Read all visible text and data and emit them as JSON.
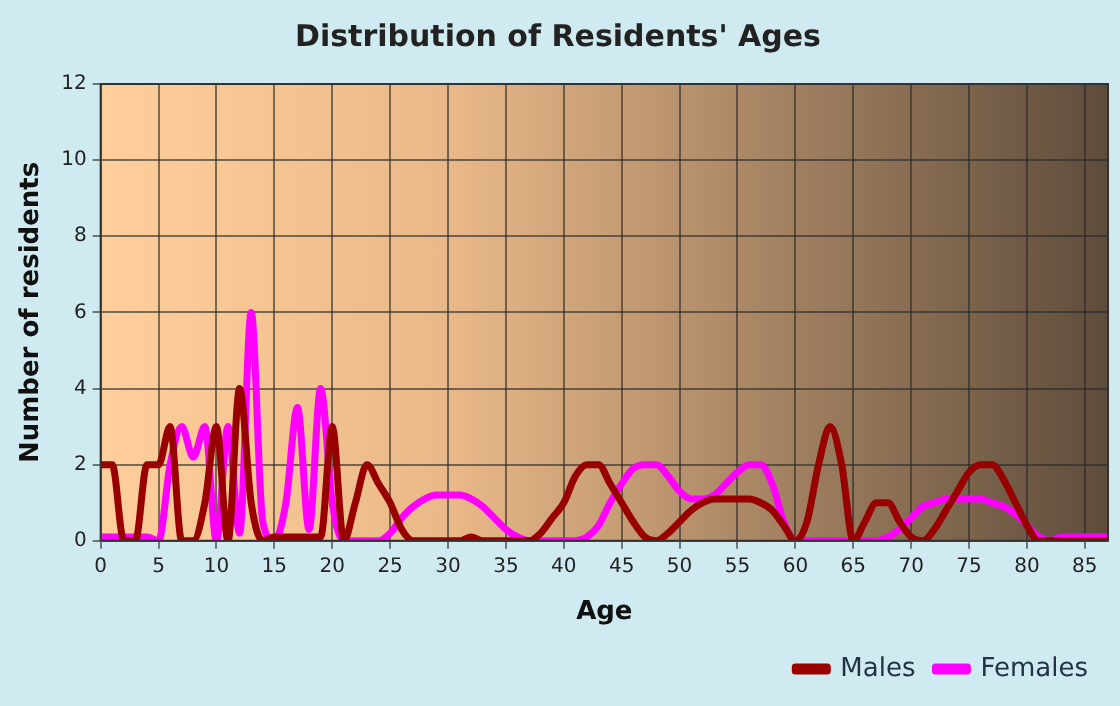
{
  "chart_data": {
    "type": "line",
    "title": "Distribution of Residents' Ages",
    "xlabel": "Age",
    "ylabel": "Number of residents",
    "x": [
      0,
      1,
      2,
      3,
      4,
      5,
      6,
      7,
      8,
      9,
      10,
      11,
      12,
      13,
      14,
      15,
      16,
      17,
      18,
      19,
      20,
      21,
      22,
      23,
      24,
      25,
      26,
      27,
      28,
      29,
      30,
      31,
      32,
      33,
      34,
      35,
      36,
      37,
      38,
      39,
      40,
      41,
      42,
      43,
      44,
      45,
      46,
      47,
      48,
      49,
      50,
      51,
      52,
      53,
      54,
      55,
      56,
      57,
      58,
      59,
      60,
      61,
      62,
      63,
      64,
      65,
      66,
      67,
      68,
      69,
      70,
      71,
      72,
      73,
      74,
      75,
      76,
      77,
      78,
      79,
      80,
      81,
      82,
      83,
      84,
      85,
      86,
      87
    ],
    "series": [
      {
        "name": "Males",
        "color": "#990000",
        "values": [
          2,
          2,
          0,
          0,
          2,
          2,
          3,
          0,
          0,
          1,
          3,
          0,
          4,
          1,
          0,
          0.1,
          0.1,
          0.1,
          0.1,
          0.1,
          3,
          0,
          1,
          2,
          1.5,
          1,
          0.3,
          0,
          0,
          0,
          0,
          0,
          0.1,
          0,
          0,
          0,
          0,
          0,
          0.2,
          0.6,
          1,
          1.7,
          2,
          2,
          1.5,
          1,
          0.5,
          0.1,
          0,
          0.2,
          0.5,
          0.8,
          1,
          1.1,
          1.1,
          1.1,
          1.1,
          1,
          0.8,
          0.4,
          0,
          0.5,
          2,
          3,
          2,
          0,
          0.5,
          1,
          1,
          0.5,
          0.1,
          0,
          0.3,
          0.8,
          1.3,
          1.8,
          2,
          2,
          1.6,
          1,
          0.4,
          0,
          0,
          0,
          0,
          0,
          0,
          0
        ]
      },
      {
        "name": "Females",
        "color": "#ff00ff",
        "values": [
          0.1,
          0.1,
          0.1,
          0.1,
          0.1,
          0,
          2,
          3,
          2.2,
          3,
          0,
          3,
          0.2,
          6,
          0.5,
          0,
          1,
          3.5,
          0.3,
          4,
          1,
          0,
          0,
          0,
          0,
          0.2,
          0.6,
          0.9,
          1.1,
          1.2,
          1.2,
          1.2,
          1.1,
          0.9,
          0.6,
          0.3,
          0.1,
          0,
          0,
          0,
          0,
          0,
          0.1,
          0.4,
          1,
          1.5,
          1.9,
          2,
          2,
          1.7,
          1.3,
          1.1,
          1.1,
          1.2,
          1.5,
          1.8,
          2,
          2,
          1.5,
          0.5,
          0,
          0,
          0,
          0,
          0,
          0,
          0,
          0,
          0.1,
          0.3,
          0.6,
          0.9,
          1,
          1.1,
          1.1,
          1.1,
          1.1,
          1,
          0.9,
          0.7,
          0.4,
          0.1,
          0,
          0.1,
          0.1,
          0.1,
          0.1,
          0.1
        ]
      }
    ],
    "xlim": [
      0,
      87
    ],
    "xticks": [
      0,
      5,
      10,
      15,
      20,
      25,
      30,
      35,
      40,
      45,
      50,
      55,
      60,
      65,
      70,
      75,
      80,
      85
    ],
    "ylim": [
      0,
      12
    ],
    "yticks": [
      0,
      2,
      4,
      6,
      8,
      10,
      12
    ],
    "grid": true,
    "legend": "bottom right",
    "marker": "none",
    "line_style": "solid"
  }
}
